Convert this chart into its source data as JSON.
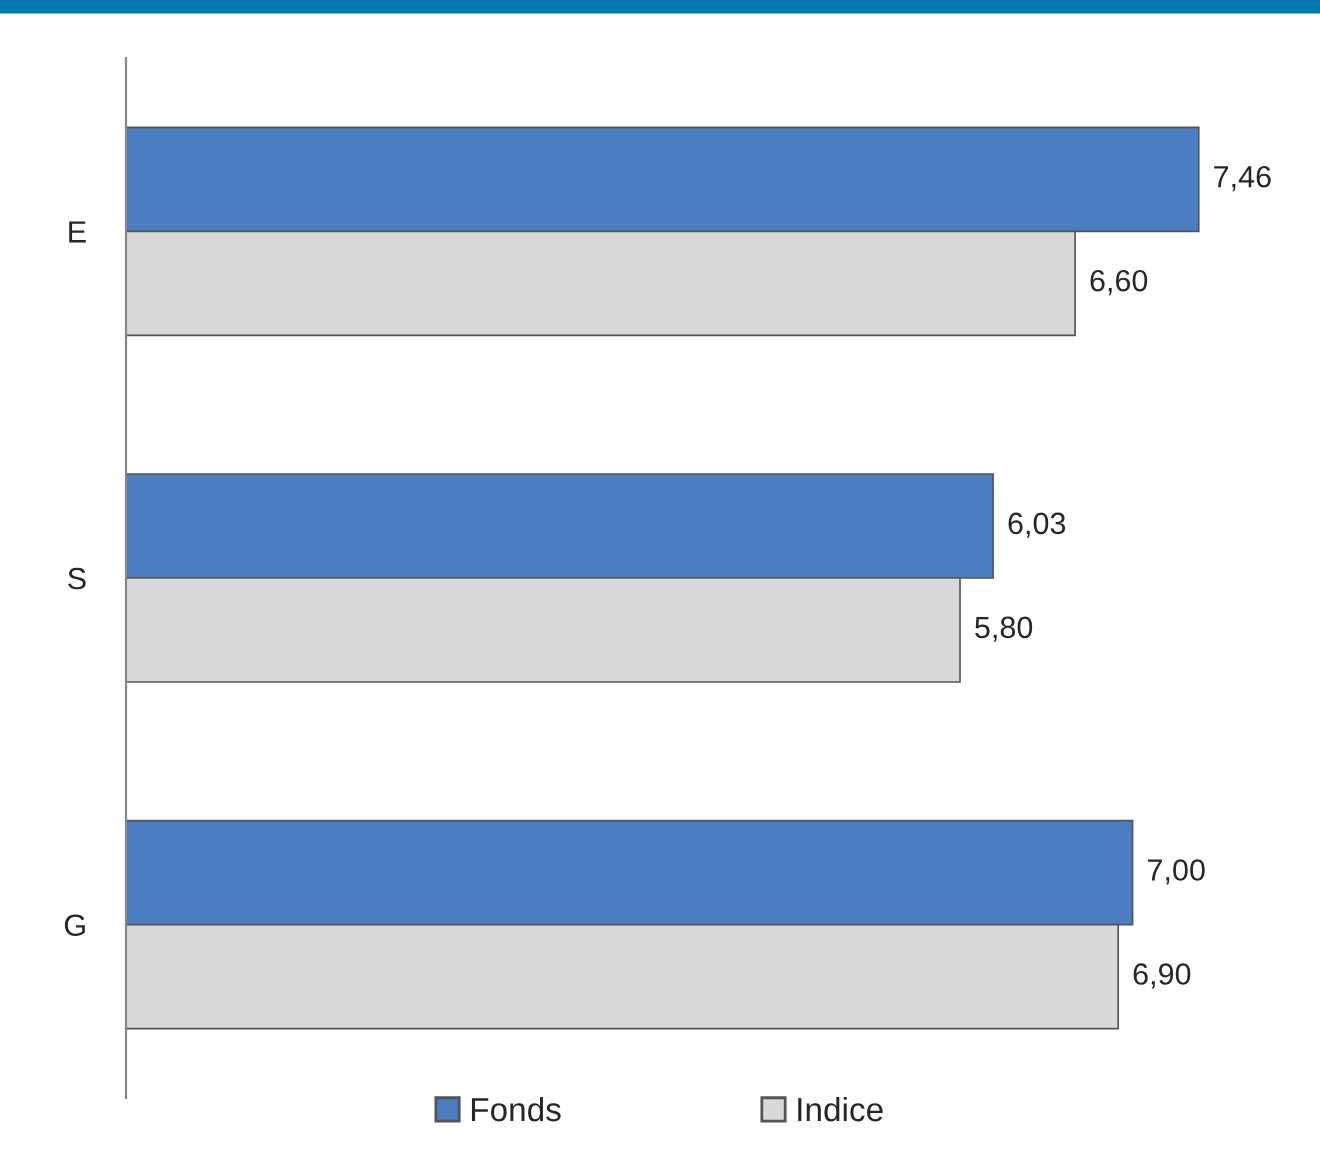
{
  "chart_data": {
    "type": "bar",
    "orientation": "horizontal",
    "categories": [
      "E",
      "S",
      "G"
    ],
    "series": [
      {
        "name": "Fonds",
        "color": "#4a7ec0",
        "values": [
          7.46,
          6.03,
          7.0
        ],
        "value_labels": [
          "7,46",
          "6,03",
          "7,00"
        ]
      },
      {
        "name": "Indice",
        "color": "#d9d9d9",
        "values": [
          6.6,
          5.8,
          6.9
        ],
        "value_labels": [
          "6,60",
          "5,80",
          "6,90"
        ]
      }
    ],
    "legend": "bottom",
    "grid": false
  }
}
